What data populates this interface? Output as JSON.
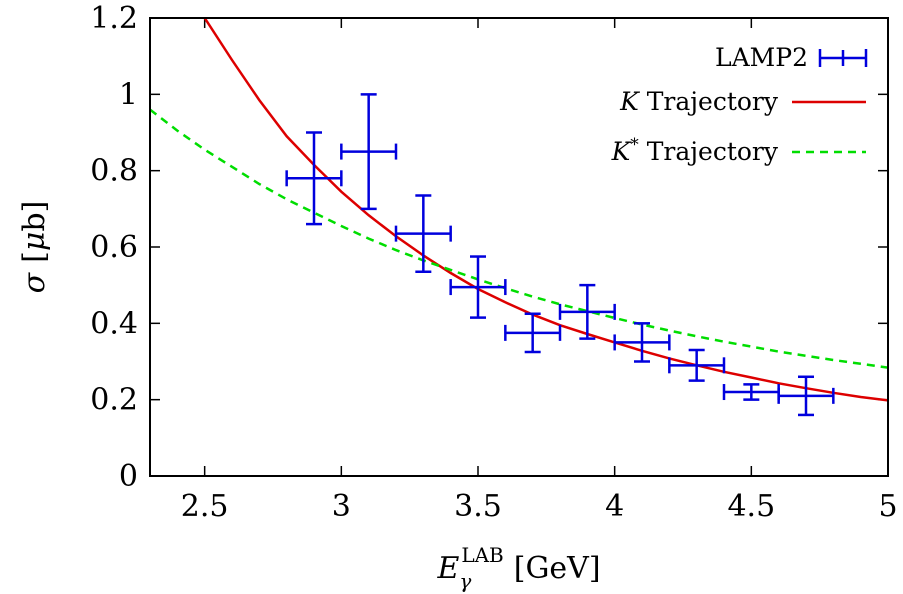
{
  "chart_data": {
    "type": "line",
    "xlabel": {
      "main": "E",
      "sub": "γ",
      "sup": "LAB",
      "unit": "[GeV]"
    },
    "ylabel": {
      "symbol": "σ",
      "unit_open": "[",
      "unit_mu": "μ",
      "unit_rest": "b]"
    },
    "xlim": [
      2.3,
      5.0
    ],
    "ylim": [
      0,
      1.2
    ],
    "xticks": [
      2.5,
      3,
      3.5,
      4,
      4.5,
      5
    ],
    "xtick_labels": [
      "2.5",
      "3",
      "3.5",
      "4",
      "4.5",
      "5"
    ],
    "yticks": [
      0,
      0.2,
      0.4,
      0.6,
      0.8,
      1.0,
      1.2
    ],
    "ytick_labels": [
      "0",
      "0.2",
      "0.4",
      "0.6",
      "0.8",
      "1",
      "1.2"
    ],
    "legend_position": "top-right",
    "series": [
      {
        "name": "LAMP2",
        "kind": "errorbar",
        "color": "#0000dd",
        "points": [
          {
            "x": 2.9,
            "y": 0.78,
            "xerr": 0.1,
            "ylow": 0.66,
            "yhigh": 0.9
          },
          {
            "x": 3.1,
            "y": 0.85,
            "xerr": 0.1,
            "ylow": 0.7,
            "yhigh": 1.0
          },
          {
            "x": 3.3,
            "y": 0.635,
            "xerr": 0.1,
            "ylow": 0.535,
            "yhigh": 0.735
          },
          {
            "x": 3.5,
            "y": 0.495,
            "xerr": 0.1,
            "ylow": 0.415,
            "yhigh": 0.575
          },
          {
            "x": 3.7,
            "y": 0.375,
            "xerr": 0.1,
            "ylow": 0.325,
            "yhigh": 0.425
          },
          {
            "x": 3.9,
            "y": 0.43,
            "xerr": 0.1,
            "ylow": 0.36,
            "yhigh": 0.5
          },
          {
            "x": 4.1,
            "y": 0.35,
            "xerr": 0.1,
            "ylow": 0.3,
            "yhigh": 0.4
          },
          {
            "x": 4.3,
            "y": 0.29,
            "xerr": 0.1,
            "ylow": 0.25,
            "yhigh": 0.33
          },
          {
            "x": 4.5,
            "y": 0.22,
            "xerr": 0.1,
            "ylow": 0.2,
            "yhigh": 0.24
          },
          {
            "x": 4.7,
            "y": 0.21,
            "xerr": 0.1,
            "ylow": 0.16,
            "yhigh": 0.26
          }
        ]
      },
      {
        "name": "Trajectory",
        "name_symbol": "K",
        "name_sup": "",
        "kind": "line",
        "color": "#dd0000",
        "dash": "solid",
        "x": [
          2.5,
          2.6,
          2.7,
          2.8,
          2.9,
          3.0,
          3.1,
          3.2,
          3.3,
          3.4,
          3.5,
          3.6,
          3.7,
          3.8,
          3.9,
          4.0,
          4.1,
          4.2,
          4.3,
          4.4,
          4.5,
          4.6,
          4.7,
          4.8,
          4.9,
          5.0
        ],
        "y": [
          1.2,
          1.09,
          0.985,
          0.89,
          0.815,
          0.745,
          0.683,
          0.628,
          0.578,
          0.532,
          0.49,
          0.455,
          0.423,
          0.395,
          0.372,
          0.35,
          0.328,
          0.308,
          0.29,
          0.273,
          0.258,
          0.243,
          0.23,
          0.218,
          0.207,
          0.198
        ]
      },
      {
        "name": "Trajectory",
        "name_symbol": "K",
        "name_sup": "*",
        "kind": "line",
        "color": "#00dd00",
        "dash": "dashed",
        "x": [
          2.3,
          2.4,
          2.5,
          2.6,
          2.7,
          2.8,
          2.9,
          3.0,
          3.1,
          3.2,
          3.3,
          3.4,
          3.5,
          3.6,
          3.7,
          3.8,
          3.9,
          4.0,
          4.1,
          4.2,
          4.3,
          4.4,
          4.5,
          4.6,
          4.7,
          4.8,
          4.9,
          5.0
        ],
        "y": [
          0.96,
          0.905,
          0.855,
          0.81,
          0.765,
          0.725,
          0.69,
          0.655,
          0.622,
          0.592,
          0.565,
          0.54,
          0.515,
          0.492,
          0.47,
          0.45,
          0.432,
          0.414,
          0.397,
          0.381,
          0.366,
          0.352,
          0.339,
          0.326,
          0.315,
          0.304,
          0.294,
          0.284
        ]
      }
    ]
  }
}
